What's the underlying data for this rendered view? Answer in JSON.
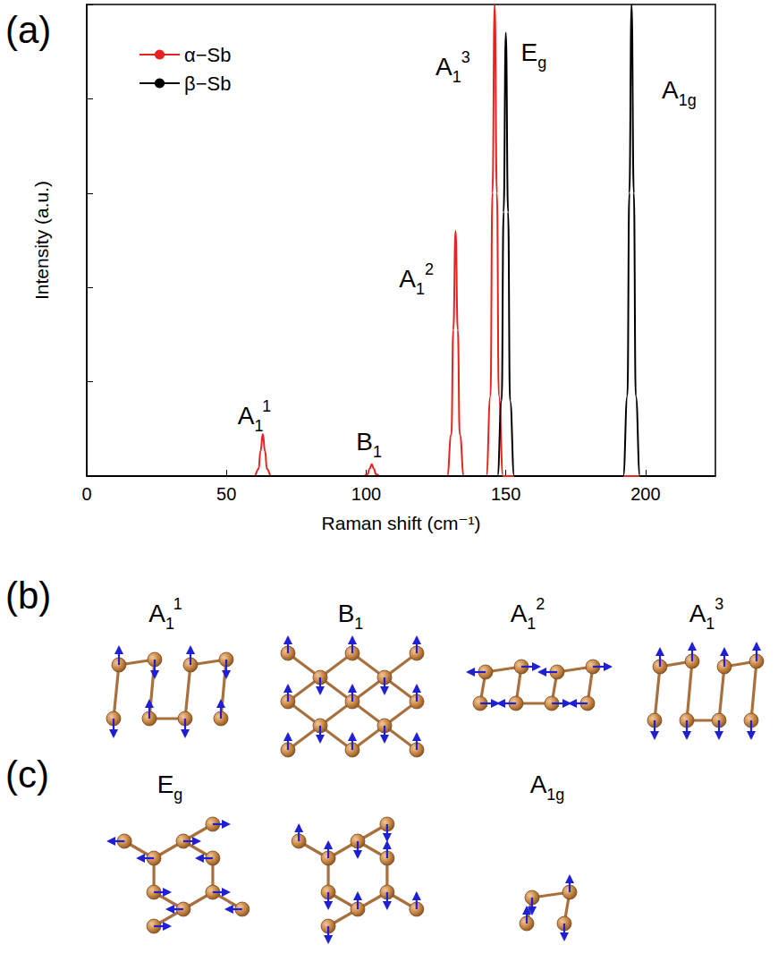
{
  "chart_data": {
    "type": "line",
    "title": "(a)",
    "x_label": "Raman shift (cm⁻¹)",
    "y_label": "Intensity (a.u.)",
    "xlim": [
      0,
      225
    ],
    "xticks": [
      0,
      50,
      100,
      150,
      200
    ],
    "ylim": [
      0,
      1
    ],
    "yticks": [
      0,
      0.2,
      0.4,
      0.6,
      0.8,
      1
    ],
    "tick_labels": "x",
    "grid": false,
    "legend": "upper left",
    "series": [
      {
        "name": "α−Sb",
        "color": "#e8231f",
        "x": [
          0,
          60,
          61.5,
          62.2,
          63,
          63.8,
          64.5,
          66,
          99,
          100.5,
          101.2,
          102,
          102.8,
          103.5,
          105,
          129,
          130.5,
          131.2,
          132,
          132.8,
          133.5,
          135,
          143,
          144.5,
          145.2,
          146,
          146.8,
          147.5,
          149,
          225
        ],
        "values": [
          0,
          0,
          0.015,
          0.053,
          0.089,
          0.053,
          0.015,
          0,
          0,
          0.004,
          0.015,
          0.025,
          0.015,
          0.004,
          0,
          0,
          0.088,
          0.31,
          0.52,
          0.31,
          0.088,
          0,
          0,
          0.17,
          0.6,
          1.0,
          0.6,
          0.17,
          0,
          0
        ]
      },
      {
        "name": "β−Sb",
        "color": "#000000",
        "x": [
          0,
          147,
          148.5,
          149.2,
          150,
          150.8,
          151.5,
          153,
          192,
          193.5,
          194.2,
          195,
          195.8,
          196.5,
          198,
          225
        ],
        "values": [
          0,
          0,
          0.16,
          0.56,
          0.94,
          0.56,
          0.16,
          0,
          0,
          0.17,
          0.6,
          1.0,
          0.6,
          0.17,
          0,
          0
        ]
      }
    ],
    "annotations": [
      {
        "label": {
          "base": "A",
          "sub": "1",
          "sup": "1"
        },
        "x": 60,
        "y": 0.11
      },
      {
        "label": {
          "base": "B",
          "sub": "1"
        },
        "x": 101,
        "y": 0.055
      },
      {
        "label": {
          "base": "A",
          "sub": "1",
          "sup": "2"
        },
        "x": 118,
        "y": 0.4
      },
      {
        "label": {
          "base": "A",
          "sub": "1",
          "sup": "3"
        },
        "x": 131,
        "y": 0.85
      },
      {
        "label": {
          "base": "E",
          "sub": "g"
        },
        "x": 160,
        "y": 0.88
      },
      {
        "label": {
          "base": "A",
          "sub": "1g"
        },
        "x": 212,
        "y": 0.8
      }
    ]
  },
  "diagrams": [
    {
      "label": "(b)",
      "modes": [
        {
          "base": "A",
          "sub": "1",
          "sup": "1"
        },
        {
          "base": "B",
          "sub": "1"
        },
        {
          "base": "A",
          "sub": "1",
          "sup": "2"
        },
        {
          "base": "A",
          "sub": "1",
          "sup": "3"
        }
      ]
    },
    {
      "label": "(c)",
      "modes": [
        {
          "base": "E",
          "sub": "g"
        },
        {
          "base": "A",
          "sub": "1g"
        }
      ]
    }
  ]
}
